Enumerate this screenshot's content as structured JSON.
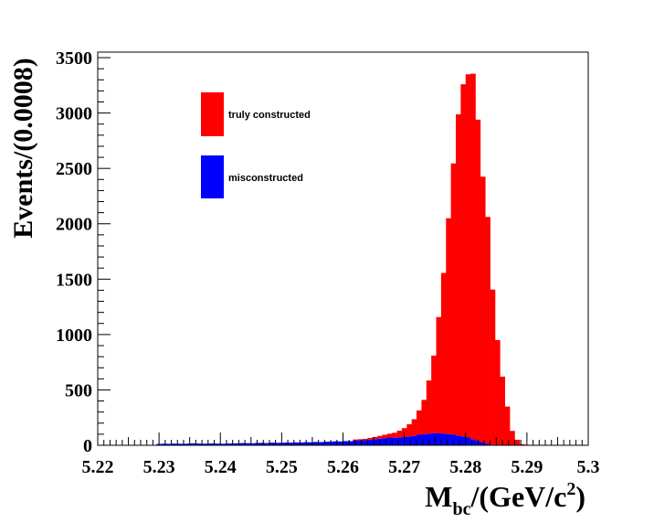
{
  "chart_data": {
    "type": "bar",
    "subtype": "stacked-histogram",
    "xlabel": {
      "main": "M",
      "sub": "bc",
      "tail": "/(GeV/c",
      "sup": "2",
      "close": ")"
    },
    "ylabel": "Events/(0.0008)",
    "xlim": [
      5.22,
      5.3
    ],
    "ylim": [
      0,
      3550
    ],
    "bin_width": 0.0008,
    "x_ticks": [
      "5.22",
      "5.23",
      "5.24",
      "5.25",
      "5.26",
      "5.27",
      "5.28",
      "5.29",
      "5.3"
    ],
    "y_ticks": [
      "0",
      "500",
      "1000",
      "1500",
      "2000",
      "2500",
      "3000",
      "3500"
    ],
    "legend_position": "top-left",
    "colors": {
      "truly": "#ff0000",
      "mis": "#0000ff"
    },
    "series": [
      {
        "name": "truly constructed",
        "color": "#ff0000",
        "bin_start": 5.2616,
        "values": [
          10,
          10,
          10,
          15,
          20,
          25,
          30,
          35,
          45,
          60,
          80,
          110,
          150,
          220,
          310,
          480,
          700,
          1050,
          1450,
          1950,
          2450,
          2900,
          3180,
          3280,
          3300,
          2900,
          2400,
          2050,
          1400,
          950,
          620,
          350,
          130,
          50,
          10,
          5
        ]
      },
      {
        "name": "misconstructed",
        "color": "#0000ff",
        "bin_start": 5.2296,
        "values": [
          12,
          14,
          13,
          15,
          14,
          13,
          15,
          18,
          16,
          14,
          15,
          17,
          15,
          14,
          16,
          17,
          18,
          20,
          19,
          18,
          21,
          22,
          20,
          24,
          22,
          23,
          25,
          24,
          26,
          25,
          28,
          27,
          30,
          29,
          32,
          33,
          36,
          35,
          38,
          37,
          42,
          45,
          48,
          52,
          55,
          60,
          65,
          70,
          68,
          72,
          75,
          80,
          85,
          95,
          100,
          105,
          110,
          108,
          106,
          100,
          95,
          88,
          80,
          70,
          55,
          40,
          25,
          12,
          6
        ]
      }
    ]
  },
  "legend": {
    "truly": "truly constructed",
    "mis": "misconstructed"
  }
}
